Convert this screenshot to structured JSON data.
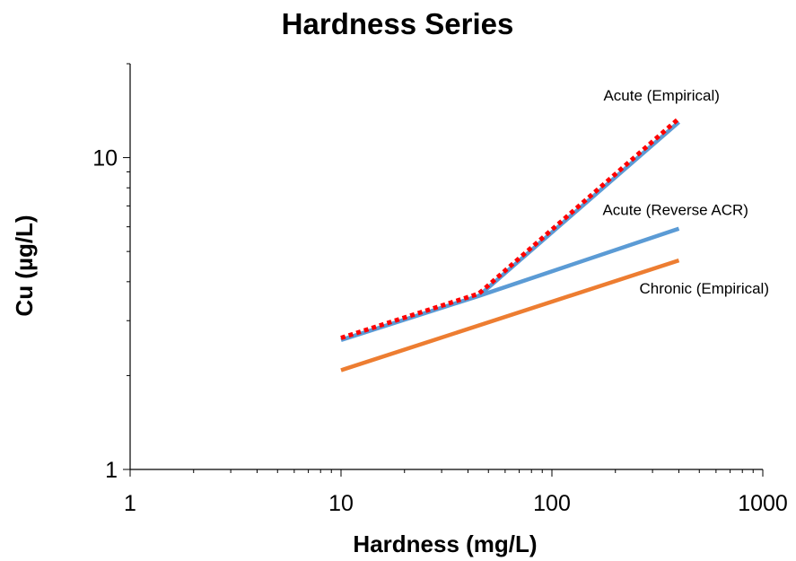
{
  "chart_data": {
    "type": "line",
    "title": "Hardness Series",
    "xlabel": "Hardness (mg/L)",
    "ylabel": "Cu (µg/L)",
    "x_scale": "log",
    "y_scale": "log",
    "xlim": [
      1,
      1000
    ],
    "ylim": [
      1,
      20
    ],
    "x_tick_labels": [
      "1",
      "10",
      "100",
      "1000"
    ],
    "y_tick_labels": [
      "1",
      "10"
    ],
    "grid": false,
    "legend": "none",
    "series": [
      {
        "name": "Chronic (Empirical)",
        "color": "#ED7D31",
        "dash": "solid",
        "x": [
          10,
          400
        ],
        "y": [
          2.08,
          4.68
        ]
      },
      {
        "name": "Acute (Reverse ACR)",
        "color": "#5B9BD5",
        "dash": "solid",
        "x": [
          10,
          45,
          400
        ],
        "y": [
          2.6,
          3.6,
          5.92
        ]
      },
      {
        "name": "Acute (Empirical)",
        "color": "#5B9BD5",
        "dash": "solid",
        "x": [
          45,
          400
        ],
        "y": [
          3.6,
          13.0
        ]
      },
      {
        "name": "",
        "color": "#FF0000",
        "dash": "dotted",
        "x": [
          10,
          45,
          400
        ],
        "y": [
          2.64,
          3.66,
          13.35
        ]
      }
    ]
  }
}
